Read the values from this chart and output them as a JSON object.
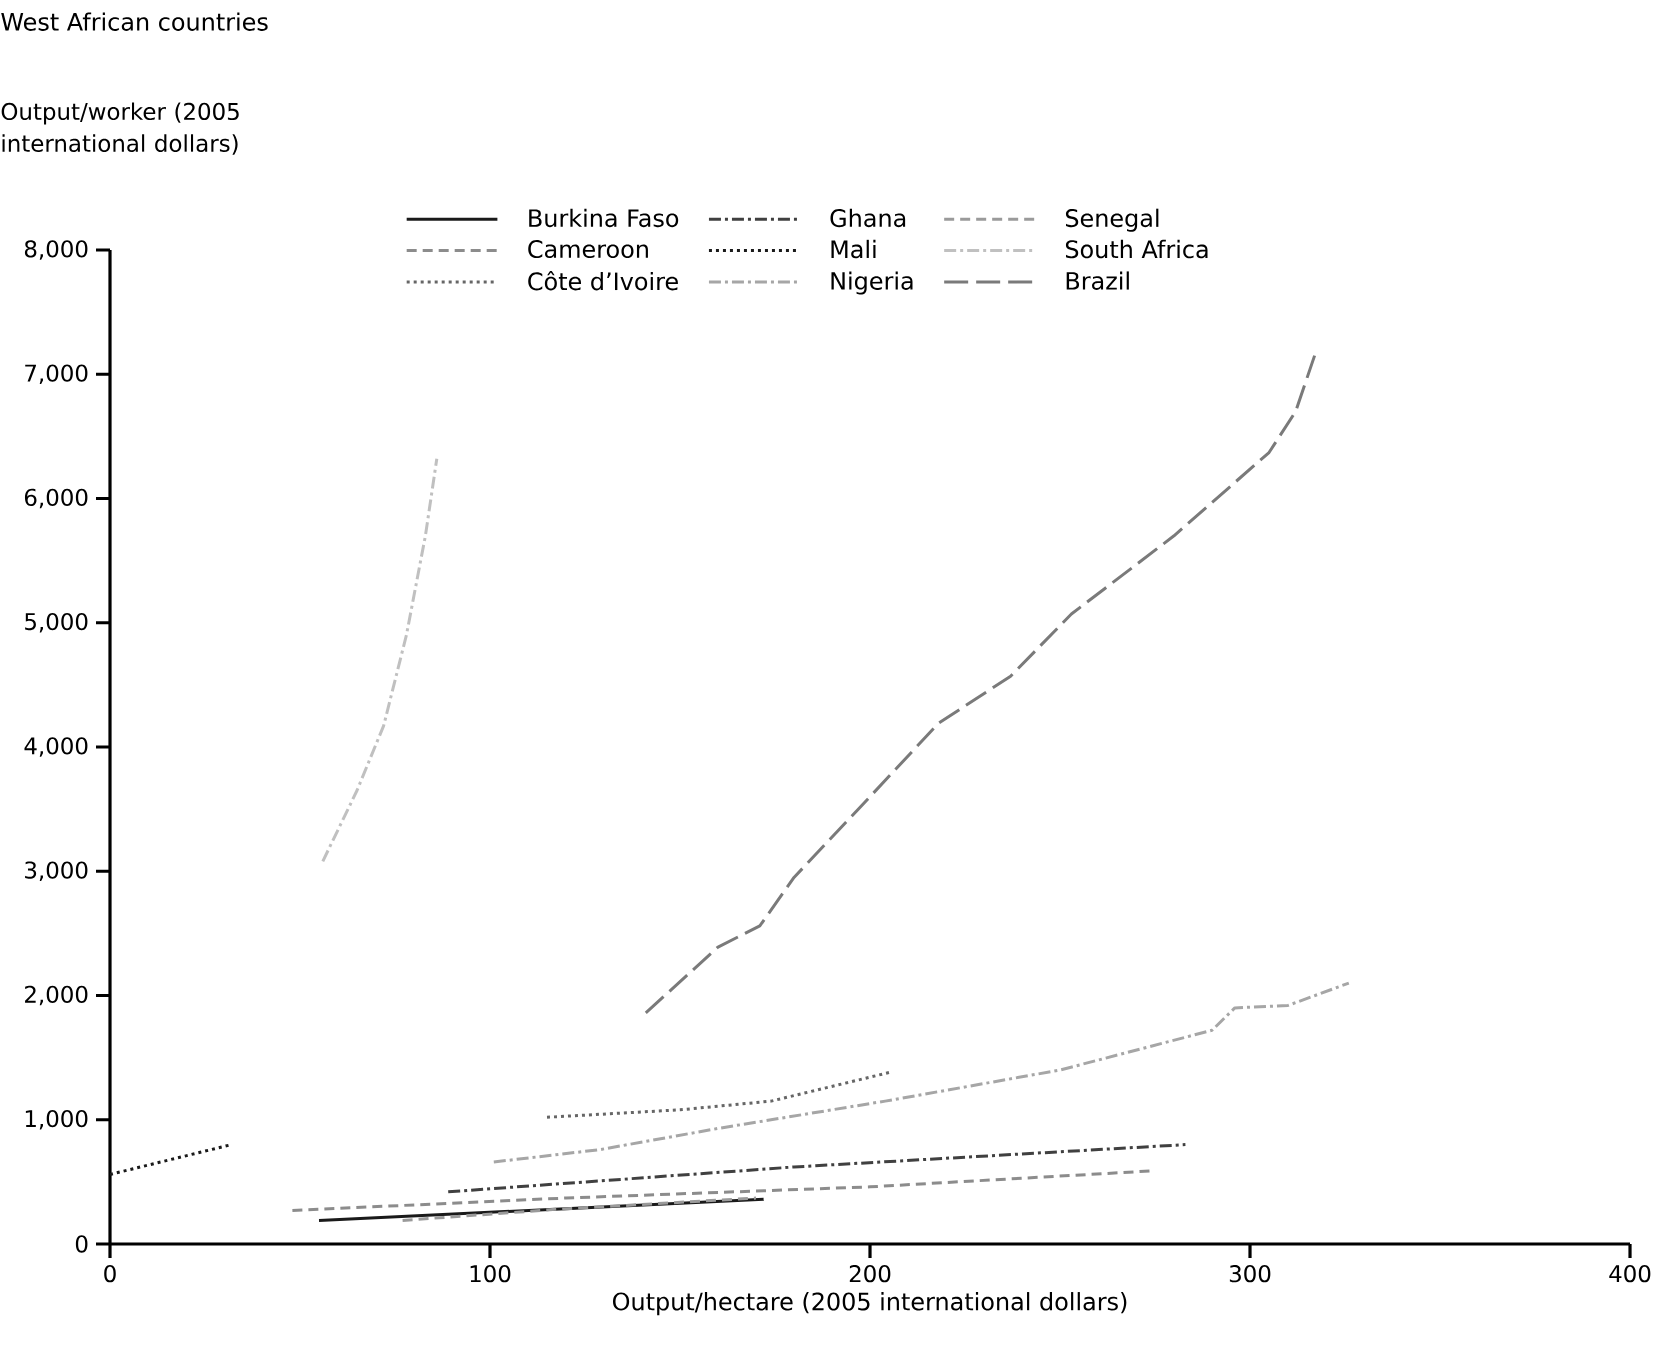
{
  "chart_data": {
    "type": "line",
    "title": "West African countries",
    "ylabel": "Output/worker (2005 international dollars)",
    "xlabel": "Output/hectare (2005 international dollars)",
    "xlim": [
      0,
      400
    ],
    "ylim": [
      0,
      8000
    ],
    "xticks": [
      0,
      100,
      200,
      300,
      400
    ],
    "yticks": [
      0,
      {
        "value": 1000,
        "label": "1,000"
      },
      {
        "value": 2000,
        "label": "2,000"
      },
      {
        "value": 3000,
        "label": "3,000"
      },
      {
        "value": 4000,
        "label": "4,000"
      },
      {
        "value": 5000,
        "label": "5,000"
      },
      {
        "value": 6000,
        "label": "6,000"
      },
      {
        "value": 7000,
        "label": "7,000"
      },
      {
        "value": 8000,
        "label": "8,000"
      }
    ],
    "legend": "top right",
    "grid": false,
    "marker": "none",
    "series": [
      {
        "name": "Burkina Faso",
        "color": "#1a1a1a",
        "line_style": "solid",
        "x": [
          55,
          172
        ],
        "values": [
          190,
          360
        ]
      },
      {
        "name": "Cameroon",
        "color": "#8c8c8c",
        "line_style": "dashed",
        "x": [
          48,
          120,
          200,
          275
        ],
        "values": [
          270,
          370,
          460,
          590
        ]
      },
      {
        "name": "Côte d’Ivoire",
        "color": "#666666",
        "line_style": "dotted",
        "x": [
          115,
          150,
          174,
          205
        ],
        "values": [
          1020,
          1080,
          1150,
          1380
        ]
      },
      {
        "name": "Ghana",
        "color": "#404040",
        "line_style": "dashdot",
        "x": [
          89,
          180,
          283
        ],
        "values": [
          420,
          620,
          800
        ]
      },
      {
        "name": "Mali",
        "color": "#1a1a1a",
        "line_style": "dotted",
        "x": [
          0,
          32
        ],
        "values": [
          560,
          800
        ]
      },
      {
        "name": "Nigeria",
        "color": "#a6a6a6",
        "line_style": "dashdot",
        "x": [
          101,
          129,
          160,
          204,
          250,
          290,
          296,
          310,
          326
        ],
        "values": [
          660,
          760,
          930,
          1150,
          1400,
          1720,
          1900,
          1920,
          2100
        ]
      },
      {
        "name": "Senegal",
        "color": "#9a9a9a",
        "line_style": "dashed",
        "x": [
          77,
          118,
          170
        ],
        "values": [
          190,
          280,
          370
        ]
      },
      {
        "name": "South Africa",
        "color": "#c0c0c0",
        "line_style": "dashdot",
        "x": [
          56,
          65,
          72,
          78,
          83,
          86
        ],
        "values": [
          3080,
          3650,
          4170,
          4900,
          5700,
          6320
        ]
      },
      {
        "name": "Brazil",
        "color": "#7a7a7a",
        "line_style": "longdash",
        "x": [
          141,
          160,
          171,
          180,
          200,
          218,
          237,
          253,
          280,
          305,
          312,
          317
        ],
        "values": [
          1860,
          2390,
          2560,
          2950,
          3600,
          4190,
          4570,
          5070,
          5700,
          6370,
          6700,
          7150
        ]
      }
    ]
  }
}
